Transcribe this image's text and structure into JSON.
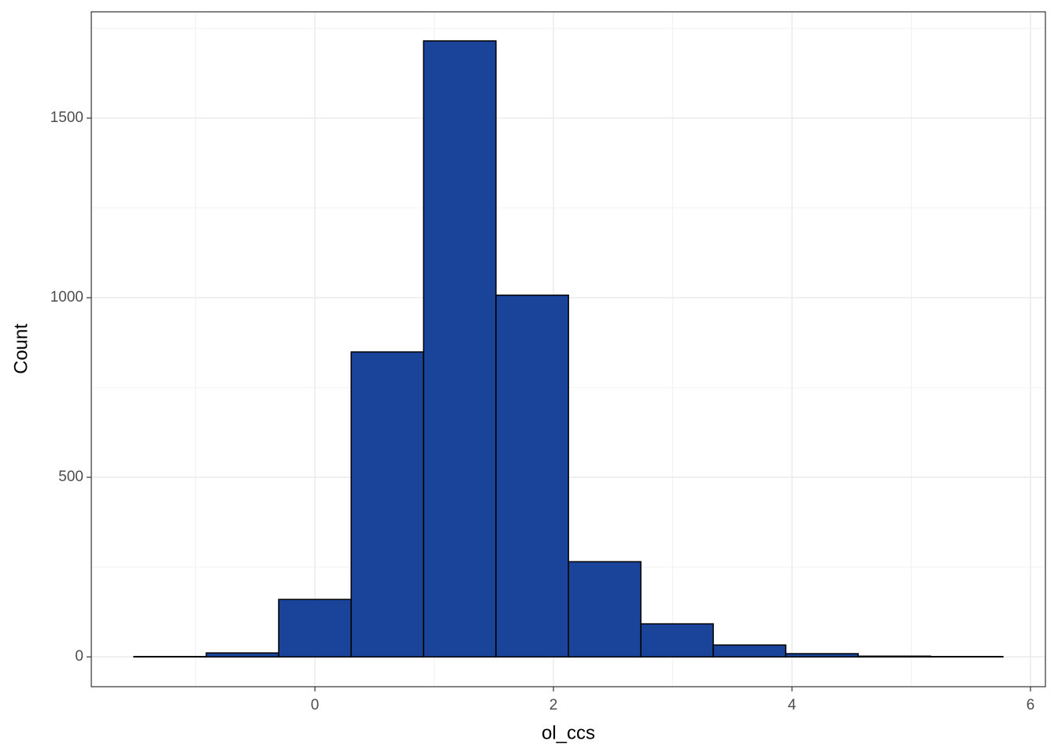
{
  "chart_data": {
    "type": "histogram",
    "x_label": "ol_ccs",
    "y_label": "Count",
    "bins": [
      -1.518,
      -0.911,
      -0.304,
      0.304,
      0.911,
      1.518,
      2.126,
      2.733,
      3.34,
      3.948,
      4.555,
      5.162,
      5.769
    ],
    "values": [
      1,
      11,
      160,
      849,
      1715,
      1007,
      265,
      92,
      33,
      9,
      2,
      1
    ],
    "color": "#1a4499",
    "edgecolor": "#000000",
    "xlim": [
      -1.875,
      6.125
    ],
    "xticks": [
      0,
      2,
      4,
      6
    ],
    "ylim": [
      -83,
      1796
    ],
    "yticks": [
      0,
      500,
      1000,
      1500
    ],
    "grid": true
  }
}
